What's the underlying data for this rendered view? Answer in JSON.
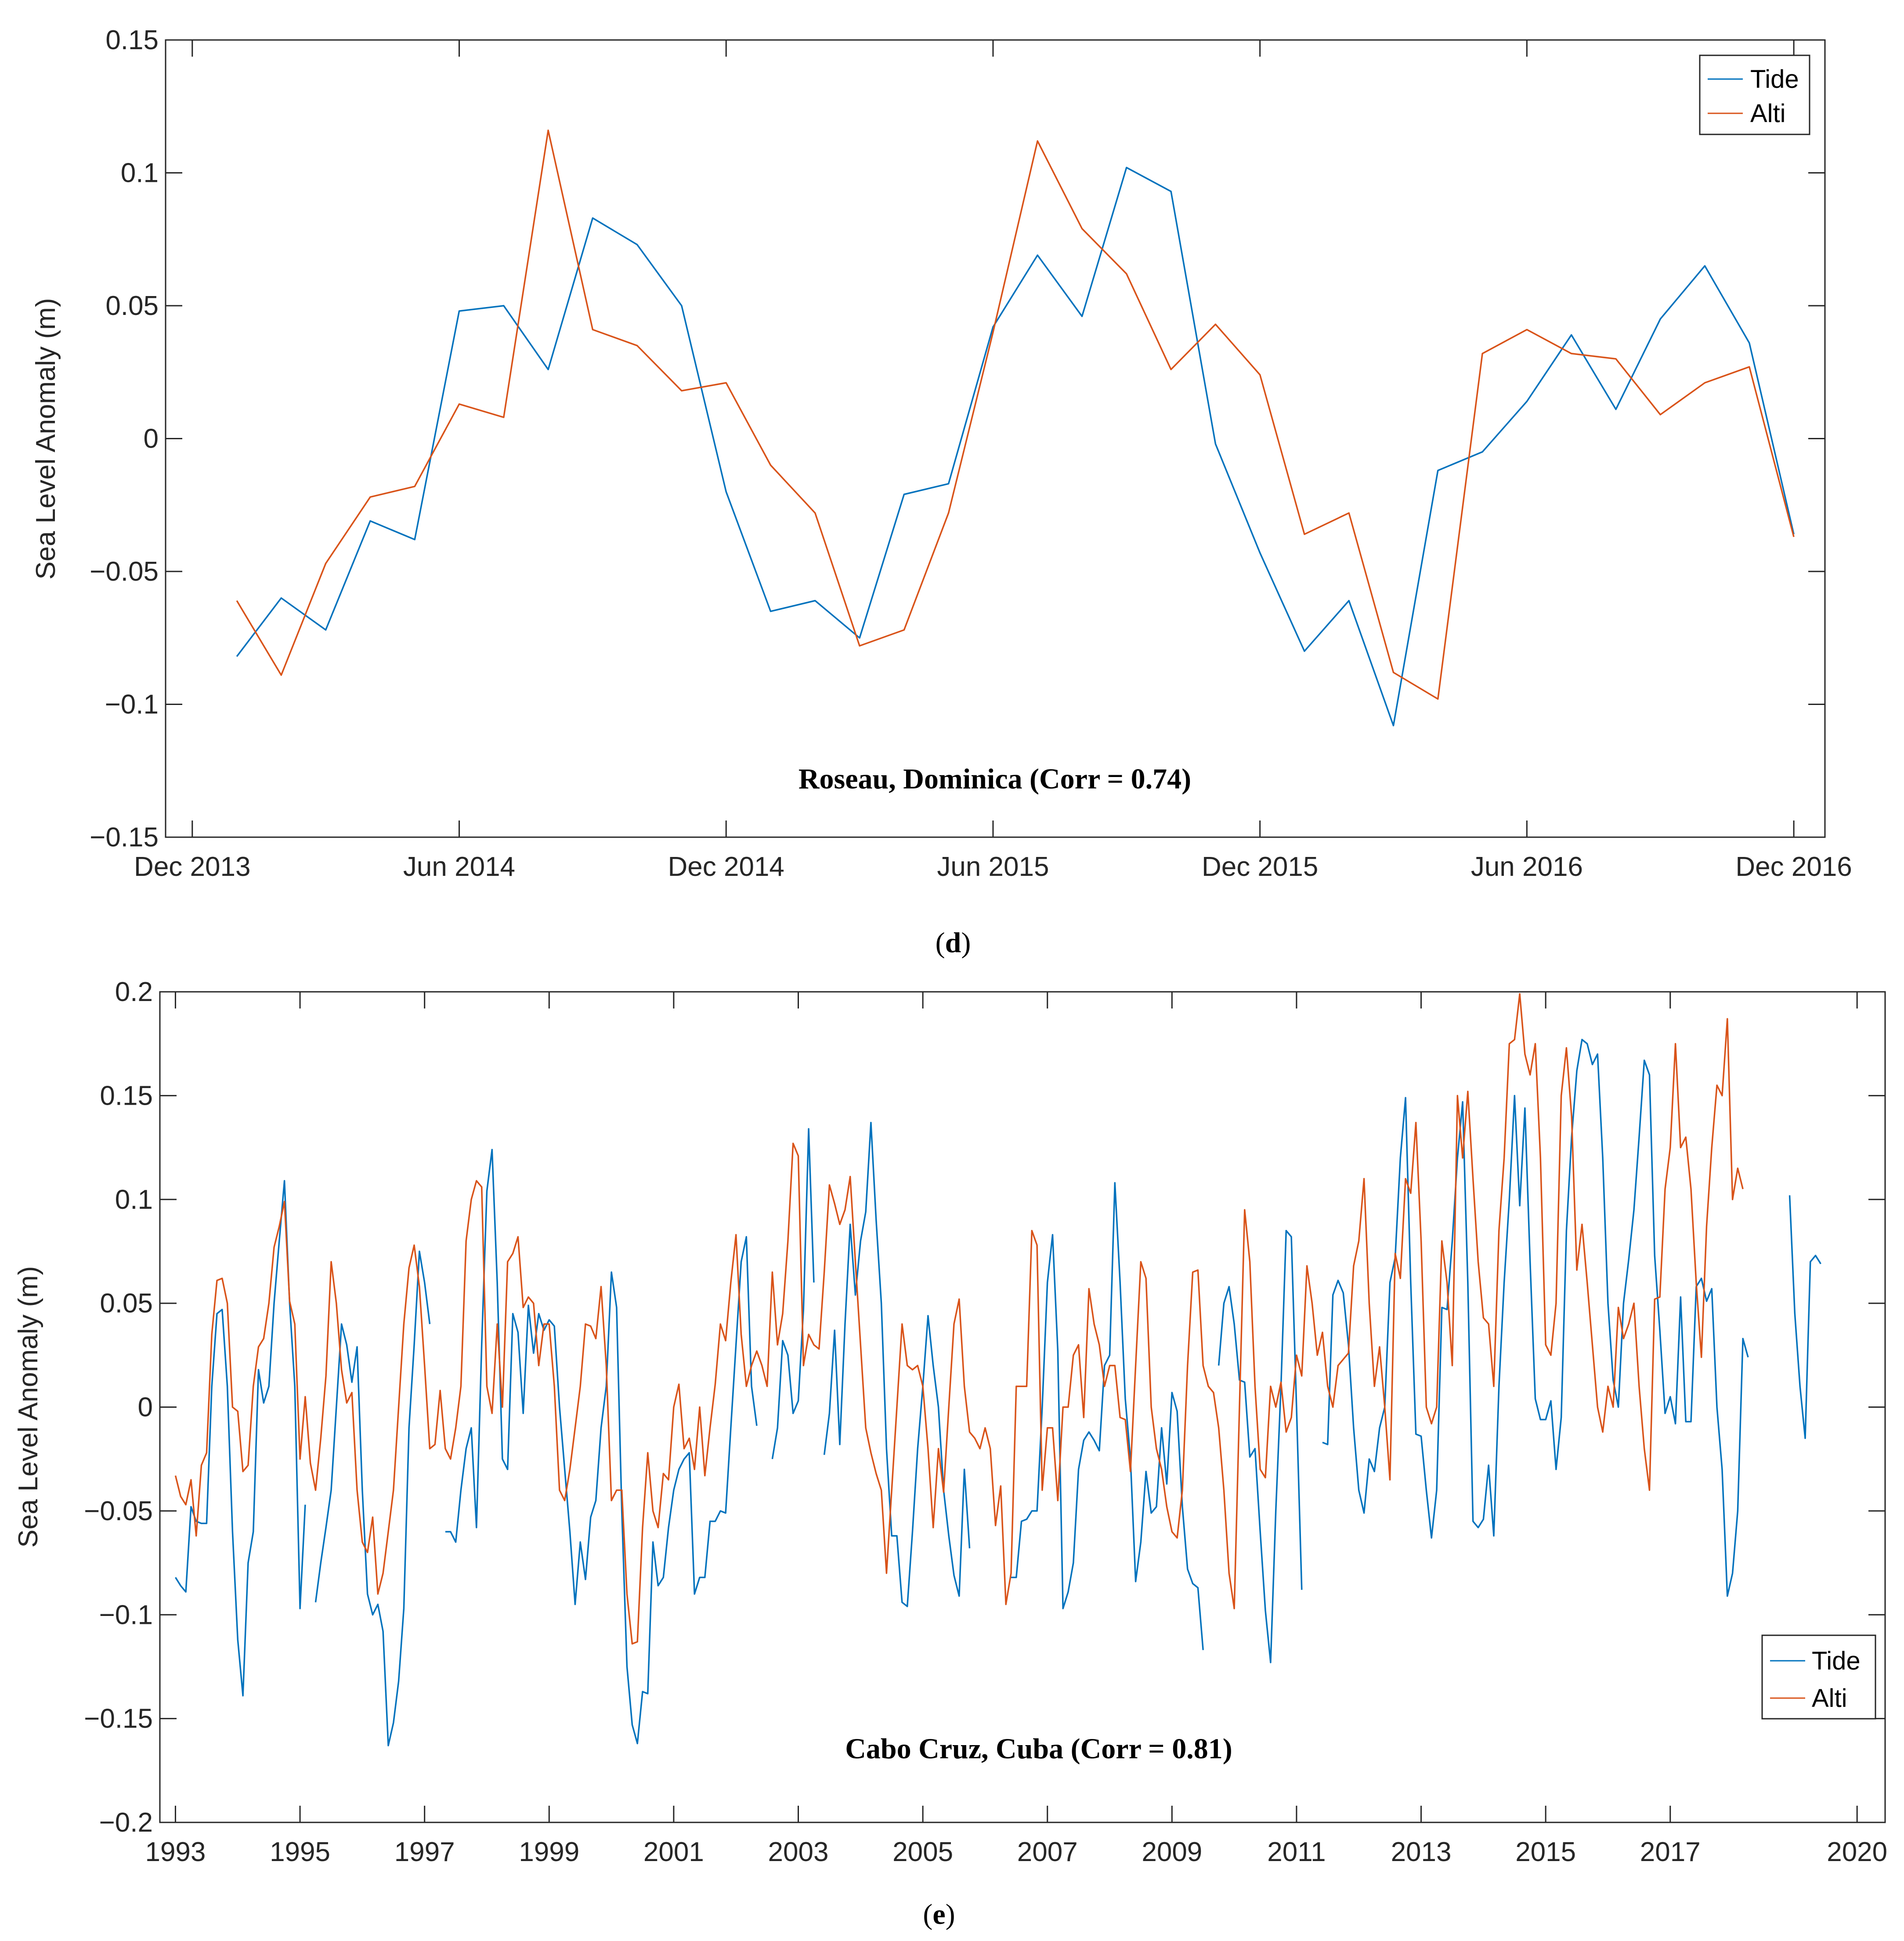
{
  "chart_data": [
    {
      "type": "line",
      "caption": "d",
      "annotation": "Roseau, Dominica (Corr = 0.74)",
      "ylabel": "Sea Level Anomaly (m)",
      "xlabel": "",
      "ylim": [
        -0.15,
        0.15
      ],
      "yticks": [
        -0.15,
        -0.1,
        -0.05,
        0,
        0.05,
        0.1,
        0.15
      ],
      "ytick_labels": [
        "−0.15",
        "−0.1",
        "−0.05",
        "0",
        "0.05",
        "0.1",
        "0.15"
      ],
      "xlim": [
        -0.6,
        36.7
      ],
      "xticks": [
        0,
        6,
        12,
        18,
        24,
        30,
        36
      ],
      "xtick_labels": [
        "Dec 2013",
        "Jun 2014",
        "Dec 2014",
        "Jun 2015",
        "Dec 2015",
        "Jun 2016",
        "Dec 2016"
      ],
      "legend": [
        "Tide",
        "Alti"
      ],
      "legend_position": "top-right",
      "x": [
        1,
        2,
        3,
        4,
        5,
        6,
        7,
        8,
        9,
        10,
        11,
        12,
        13,
        14,
        15,
        16,
        17,
        18,
        19,
        20,
        21,
        22,
        23,
        24,
        25,
        26,
        27,
        28,
        29,
        30,
        31,
        32,
        33,
        34,
        35,
        36
      ],
      "series": [
        {
          "name": "Tide",
          "color": "#0072BD",
          "values": [
            -0.082,
            -0.06,
            -0.072,
            -0.031,
            -0.038,
            0.048,
            0.05,
            0.026,
            0.083,
            0.073,
            0.05,
            -0.02,
            -0.065,
            -0.061,
            -0.075,
            -0.021,
            -0.017,
            0.042,
            0.069,
            0.046,
            0.102,
            0.093,
            -0.002,
            -0.043,
            -0.08,
            -0.061,
            -0.108,
            -0.012,
            -0.005,
            0.014,
            0.039,
            0.011,
            0.045,
            0.065,
            0.036,
            -0.036
          ]
        },
        {
          "name": "Alti",
          "color": "#D95319",
          "values": [
            -0.061,
            -0.089,
            -0.047,
            -0.022,
            -0.018,
            0.013,
            0.008,
            0.116,
            0.041,
            0.035,
            0.018,
            0.021,
            -0.01,
            -0.028,
            -0.078,
            -0.072,
            -0.028,
            0.04,
            0.112,
            0.079,
            0.062,
            0.026,
            0.043,
            0.024,
            -0.036,
            -0.028,
            -0.088,
            -0.098,
            0.032,
            0.041,
            0.032,
            0.03,
            0.009,
            0.021,
            0.027,
            -0.037
          ]
        }
      ]
    },
    {
      "type": "line",
      "caption": "e",
      "annotation": "Cabo Cruz, Cuba (Corr = 0.81)",
      "ylabel": "Sea Level Anomaly (m)",
      "xlabel": "",
      "ylim": [
        -0.2,
        0.2
      ],
      "yticks": [
        -0.2,
        -0.15,
        -0.1,
        -0.05,
        0,
        0.05,
        0.1,
        0.15,
        0.2
      ],
      "ytick_labels": [
        "−0.2",
        "−0.15",
        "−0.1",
        "−0.05",
        "0",
        "0.05",
        "0.1",
        "0.15",
        "0.2"
      ],
      "xlim": [
        1992.75,
        2020.45
      ],
      "xticks": [
        1993,
        1995,
        1997,
        1999,
        2001,
        2003,
        2005,
        2007,
        2009,
        2011,
        2013,
        2015,
        2017,
        2020
      ],
      "xtick_labels": [
        "1993",
        "1995",
        "1997",
        "1999",
        "2001",
        "2003",
        "2005",
        "2007",
        "2009",
        "2011",
        "2013",
        "2015",
        "2017",
        "2020"
      ],
      "legend": [
        "Tide",
        "Alti"
      ],
      "legend_position": "bottom-right",
      "x_start": 1993.0,
      "x_step": 0.0833333,
      "series": [
        {
          "name": "Tide",
          "color": "#0072BD",
          "values": [
            -0.082,
            -0.086,
            -0.089,
            -0.048,
            -0.055,
            -0.056,
            -0.056,
            0.01,
            0.045,
            0.047,
            0.01,
            -0.06,
            -0.112,
            -0.139,
            -0.075,
            -0.06,
            0.018,
            0.002,
            0.01,
            0.05,
            0.08,
            0.109,
            0.05,
            0.01,
            -0.097,
            -0.047,
            null,
            -0.094,
            -0.075,
            -0.058,
            -0.04,
            0.0,
            0.04,
            0.03,
            0.012,
            0.029,
            -0.04,
            -0.09,
            -0.1,
            -0.095,
            -0.108,
            -0.163,
            -0.152,
            -0.132,
            -0.097,
            -0.01,
            0.03,
            0.075,
            0.06,
            0.04,
            null,
            null,
            -0.06,
            -0.06,
            -0.065,
            -0.04,
            -0.02,
            -0.01,
            -0.058,
            0.03,
            0.104,
            0.124,
            0.06,
            -0.025,
            -0.03,
            0.045,
            0.036,
            -0.003,
            0.049,
            0.026,
            0.045,
            0.037,
            0.042,
            0.039,
            0.0,
            -0.03,
            -0.06,
            -0.095,
            -0.065,
            -0.083,
            -0.053,
            -0.045,
            -0.01,
            0.01,
            0.065,
            0.048,
            -0.05,
            -0.125,
            -0.153,
            -0.162,
            -0.137,
            -0.138,
            -0.065,
            -0.086,
            -0.082,
            -0.058,
            -0.04,
            -0.03,
            -0.025,
            -0.022,
            -0.09,
            -0.082,
            -0.082,
            -0.055,
            -0.055,
            -0.05,
            -0.051,
            -0.01,
            0.03,
            0.07,
            0.082,
            0.01,
            -0.009,
            null,
            null,
            -0.025,
            -0.01,
            0.032,
            0.025,
            -0.003,
            0.003,
            0.047,
            0.134,
            0.06,
            null,
            -0.023,
            -0.003,
            0.037,
            -0.018,
            0.04,
            0.088,
            0.054,
            0.08,
            0.094,
            0.137,
            0.09,
            0.05,
            -0.02,
            -0.062,
            -0.062,
            -0.094,
            -0.096,
            -0.06,
            -0.02,
            0.01,
            0.044,
            0.02,
            0.0,
            -0.04,
            -0.062,
            -0.081,
            -0.091,
            -0.03,
            -0.068,
            null,
            null,
            null,
            null,
            null,
            null,
            null,
            -0.082,
            -0.082,
            -0.055,
            -0.054,
            -0.05,
            -0.05,
            0.0,
            0.06,
            0.083,
            0.027,
            -0.097,
            -0.089,
            -0.075,
            -0.03,
            -0.016,
            -0.012,
            -0.016,
            -0.021,
            0.02,
            0.025,
            0.108,
            0.06,
            0.004,
            -0.025,
            -0.084,
            -0.065,
            -0.031,
            -0.051,
            -0.048,
            -0.01,
            -0.037,
            0.007,
            -0.002,
            -0.048,
            -0.078,
            -0.085,
            -0.087,
            -0.117,
            null,
            null,
            0.02,
            0.05,
            0.058,
            0.04,
            0.013,
            0.012,
            -0.024,
            -0.02,
            -0.06,
            -0.098,
            -0.123,
            -0.05,
            0.01,
            0.085,
            0.082,
            0.0,
            -0.088,
            null,
            null,
            null,
            -0.017,
            -0.018,
            0.054,
            0.061,
            0.055,
            0.03,
            -0.01,
            -0.04,
            -0.051,
            -0.025,
            -0.031,
            -0.01,
            0.0,
            0.06,
            0.072,
            0.12,
            0.149,
            0.06,
            -0.013,
            -0.014,
            -0.04,
            -0.063,
            -0.04,
            0.048,
            0.047,
            0.08,
            0.12,
            0.147,
            0.06,
            -0.055,
            -0.058,
            -0.054,
            -0.028,
            -0.062,
            0.01,
            0.06,
            0.1,
            0.15,
            0.097,
            0.144,
            0.07,
            0.004,
            -0.006,
            -0.006,
            0.003,
            -0.03,
            -0.005,
            0.085,
            0.13,
            0.162,
            0.177,
            0.175,
            0.165,
            0.17,
            0.12,
            0.05,
            0.013,
            0.0,
            0.05,
            0.071,
            0.095,
            0.13,
            0.167,
            0.16,
            0.073,
            0.037,
            -0.003,
            0.005,
            -0.008,
            0.053,
            -0.007,
            -0.007,
            0.058,
            0.062,
            0.051,
            0.057,
            0.0,
            -0.03,
            -0.091,
            -0.08,
            -0.05,
            0.033,
            0.024,
            null,
            null,
            null,
            null,
            null,
            null,
            null,
            0.102,
            0.045,
            0.01,
            -0.015,
            0.07,
            0.073,
            0.069
          ]
        },
        {
          "name": "Alti",
          "color": "#D95319",
          "values": [
            -0.033,
            -0.043,
            -0.047,
            -0.035,
            -0.062,
            -0.028,
            -0.022,
            0.035,
            0.061,
            0.062,
            0.05,
            0.0,
            -0.002,
            -0.031,
            -0.028,
            0.01,
            0.029,
            0.033,
            0.05,
            0.077,
            0.087,
            0.099,
            0.051,
            0.04,
            -0.025,
            0.005,
            -0.027,
            -0.04,
            -0.015,
            0.015,
            0.07,
            0.05,
            0.018,
            0.002,
            0.007,
            -0.04,
            -0.065,
            -0.07,
            -0.053,
            -0.09,
            -0.08,
            -0.06,
            -0.04,
            0.0,
            0.04,
            0.067,
            0.078,
            0.058,
            0.02,
            -0.02,
            -0.018,
            0.008,
            -0.02,
            -0.025,
            -0.01,
            0.01,
            0.08,
            0.1,
            0.109,
            0.106,
            0.01,
            -0.003,
            0.04,
            0.0,
            0.07,
            0.074,
            0.082,
            0.048,
            0.053,
            0.05,
            0.02,
            0.04,
            0.04,
            0.01,
            -0.04,
            -0.045,
            -0.03,
            -0.01,
            0.01,
            0.04,
            0.039,
            0.033,
            0.058,
            0.02,
            -0.045,
            -0.04,
            -0.04,
            -0.09,
            -0.114,
            -0.113,
            -0.058,
            -0.022,
            -0.05,
            -0.058,
            -0.032,
            -0.035,
            0.0,
            0.011,
            -0.02,
            -0.015,
            -0.03,
            0.0,
            -0.033,
            -0.01,
            0.011,
            0.04,
            0.032,
            0.06,
            0.083,
            0.035,
            0.01,
            0.02,
            0.027,
            0.02,
            0.01,
            0.065,
            0.03,
            0.045,
            0.08,
            0.127,
            0.121,
            0.02,
            0.035,
            0.03,
            0.028,
            0.065,
            0.107,
            0.098,
            0.088,
            0.095,
            0.111,
            0.07,
            0.03,
            -0.01,
            -0.022,
            -0.032,
            -0.04,
            -0.08,
            -0.04,
            0.0,
            0.04,
            0.02,
            0.018,
            0.02,
            0.01,
            -0.02,
            -0.058,
            -0.02,
            -0.041,
            0.0,
            0.04,
            0.052,
            0.01,
            -0.012,
            -0.015,
            -0.02,
            -0.01,
            -0.02,
            -0.057,
            -0.038,
            -0.095,
            -0.08,
            0.01,
            0.01,
            0.01,
            0.085,
            0.078,
            -0.04,
            -0.01,
            -0.01,
            -0.045,
            0.0,
            0.0,
            0.025,
            0.03,
            -0.005,
            0.057,
            0.04,
            0.03,
            0.01,
            0.02,
            0.02,
            -0.005,
            -0.006,
            -0.031,
            0.02,
            0.07,
            0.062,
            0.0,
            -0.02,
            -0.03,
            -0.048,
            -0.06,
            -0.063,
            -0.04,
            0.02,
            0.065,
            0.066,
            0.02,
            0.01,
            0.007,
            -0.01,
            -0.04,
            -0.08,
            -0.097,
            0.0,
            0.095,
            0.07,
            0.01,
            -0.03,
            -0.034,
            0.01,
            0.0,
            0.012,
            -0.012,
            -0.005,
            0.025,
            0.015,
            0.068,
            0.05,
            0.025,
            0.036,
            0.01,
            0.0,
            0.02,
            0.023,
            0.026,
            0.068,
            0.08,
            0.11,
            0.05,
            0.01,
            0.029,
            0.0,
            -0.035,
            0.074,
            0.062,
            0.11,
            0.103,
            0.137,
            0.08,
            0.0,
            -0.008,
            0.0,
            0.08,
            0.06,
            0.02,
            0.15,
            0.12,
            0.152,
            0.11,
            0.07,
            0.043,
            0.04,
            0.01,
            0.085,
            0.12,
            0.175,
            0.177,
            0.199,
            0.17,
            0.16,
            0.175,
            0.12,
            0.03,
            0.025,
            0.05,
            0.15,
            0.173,
            0.14,
            0.066,
            0.088,
            0.06,
            0.03,
            0.0,
            -0.012,
            0.01,
            0.0,
            0.048,
            0.033,
            0.04,
            0.05,
            0.01,
            -0.02,
            -0.04,
            0.052,
            0.053,
            0.105,
            0.125,
            0.175,
            0.125,
            0.13,
            0.105,
            0.06,
            0.024,
            0.087,
            0.125,
            0.155,
            0.15,
            0.187,
            0.1,
            0.115,
            0.105
          ]
        }
      ]
    }
  ]
}
